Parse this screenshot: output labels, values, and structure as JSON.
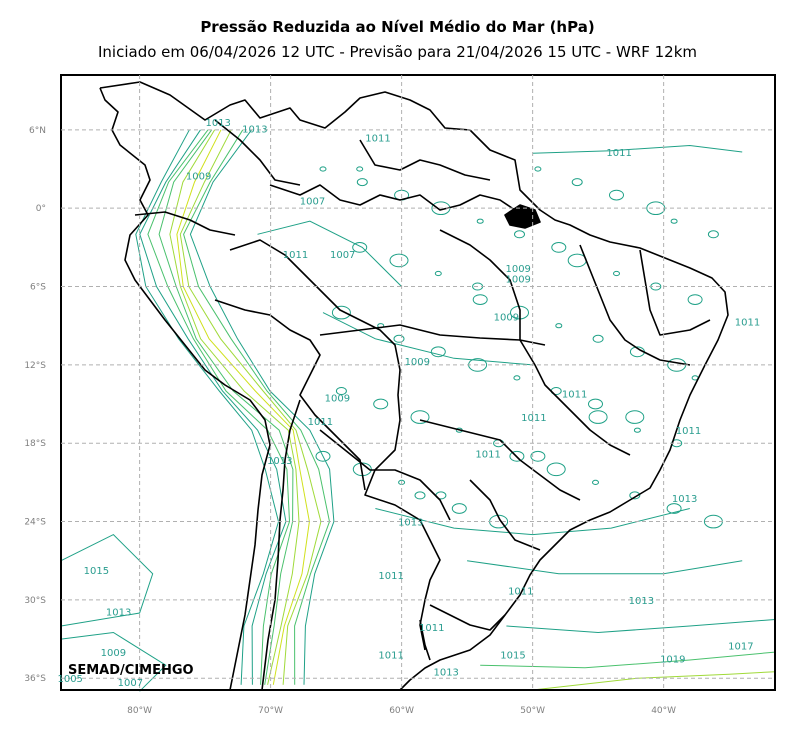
{
  "title": "Pressão Reduzida ao Nível Médio do Mar (hPa)",
  "subtitle": "Iniciado em 06/04/2026 12 UTC - Previsão para 21/04/2026 15 UTC - WRF 12km",
  "credit": "SEMAD/CIMEHGO",
  "map": {
    "lon_range": [
      -86,
      -31.5
    ],
    "lat_range": [
      -36.9,
      10.2
    ],
    "lon_ticks": [
      {
        "value": -80,
        "label": "80°W"
      },
      {
        "value": -70,
        "label": "70°W"
      },
      {
        "value": -60,
        "label": "60°W"
      },
      {
        "value": -50,
        "label": "50°W"
      },
      {
        "value": -40,
        "label": "40°W"
      }
    ],
    "lat_ticks": [
      {
        "value": 6,
        "label": "6°N"
      },
      {
        "value": 0,
        "label": "0°"
      },
      {
        "value": -6,
        "label": "6°S"
      },
      {
        "value": -12,
        "label": "12°S"
      },
      {
        "value": -18,
        "label": "18°S"
      },
      {
        "value": -24,
        "label": "24°S"
      },
      {
        "value": -30,
        "label": "30°S"
      },
      {
        "value": -36,
        "label": "36°S"
      }
    ],
    "gridlines": "dashed",
    "contour_colors": {
      "low": "#1fa187",
      "mid": "#4ac16d",
      "high": "#a0da39",
      "peak": "#d0e11c"
    },
    "contour_labels": [
      {
        "text": "1013",
        "lon": -74.0,
        "lat": 6.3
      },
      {
        "text": "1013",
        "lon": -71.2,
        "lat": 5.8
      },
      {
        "text": "1011",
        "lon": -61.8,
        "lat": 5.1
      },
      {
        "text": "1011",
        "lon": -43.4,
        "lat": 4.0
      },
      {
        "text": "1009",
        "lon": -75.5,
        "lat": 2.2
      },
      {
        "text": "1007",
        "lon": -66.8,
        "lat": 0.3
      },
      {
        "text": "1011",
        "lon": -68.1,
        "lat": -3.8
      },
      {
        "text": "1007",
        "lon": -64.5,
        "lat": -3.8
      },
      {
        "text": "1009",
        "lon": -51.1,
        "lat": -4.9
      },
      {
        "text": "1009",
        "lon": -51.1,
        "lat": -5.7
      },
      {
        "text": "1009",
        "lon": -52.0,
        "lat": -8.6
      },
      {
        "text": "1011",
        "lon": -33.6,
        "lat": -9.0
      },
      {
        "text": "1009",
        "lon": -58.8,
        "lat": -12.0
      },
      {
        "text": "1009",
        "lon": -64.9,
        "lat": -14.8
      },
      {
        "text": "1011",
        "lon": -66.2,
        "lat": -16.6
      },
      {
        "text": "1011",
        "lon": -46.8,
        "lat": -14.5
      },
      {
        "text": "1011",
        "lon": -49.9,
        "lat": -16.3
      },
      {
        "text": "1011",
        "lon": -38.1,
        "lat": -17.3
      },
      {
        "text": "1011",
        "lon": -53.4,
        "lat": -19.1
      },
      {
        "text": "1013",
        "lon": -69.3,
        "lat": -19.6
      },
      {
        "text": "1013",
        "lon": -38.4,
        "lat": -22.5
      },
      {
        "text": "1013",
        "lon": -59.3,
        "lat": -24.3
      },
      {
        "text": "1015",
        "lon": -83.3,
        "lat": -28.0
      },
      {
        "text": "1011",
        "lon": -60.8,
        "lat": -28.4
      },
      {
        "text": "1011",
        "lon": -50.9,
        "lat": -29.6
      },
      {
        "text": "1013",
        "lon": -81.6,
        "lat": -31.2
      },
      {
        "text": "1013",
        "lon": -41.7,
        "lat": -30.3
      },
      {
        "text": "1011",
        "lon": -57.7,
        "lat": -32.4
      },
      {
        "text": "1009",
        "lon": -82.0,
        "lat": -34.3
      },
      {
        "text": "1011",
        "lon": -60.8,
        "lat": -34.5
      },
      {
        "text": "1015",
        "lon": -51.5,
        "lat": -34.5
      },
      {
        "text": "1017",
        "lon": -34.1,
        "lat": -33.8
      },
      {
        "text": "1019",
        "lon": -39.3,
        "lat": -34.8
      },
      {
        "text": "1005",
        "lon": -85.3,
        "lat": -36.3
      },
      {
        "text": "1007",
        "lon": -80.7,
        "lat": -36.6
      },
      {
        "text": "1013",
        "lon": -56.6,
        "lat": -35.8
      }
    ]
  }
}
